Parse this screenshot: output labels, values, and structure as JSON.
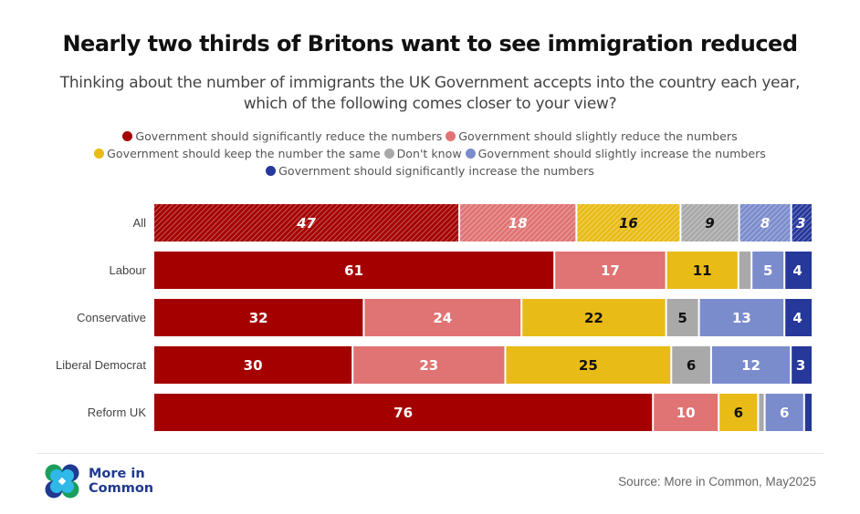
{
  "chart_data": {
    "type": "bar",
    "orientation": "horizontal",
    "stacked": true,
    "title": "Nearly two thirds of Britons want to see immigration reduced",
    "subtitle": "Thinking about the number of immigrants the UK Government accepts into the country each year, which of the following comes closer to your view?",
    "xlabel": "",
    "ylabel": "",
    "xlim": [
      0,
      100
    ],
    "grid": false,
    "legend_position": "top",
    "categories": [
      "All",
      "Labour",
      "Conservative",
      "Liberal Democrat",
      "Reform UK"
    ],
    "hatched_categories": [
      "All"
    ],
    "series": [
      {
        "name": "Government should significantly reduce the numbers",
        "color": "#a50000",
        "label_color": "#ffffff",
        "values": [
          47,
          61,
          32,
          30,
          76
        ],
        "labels": [
          "47",
          "61",
          "32",
          "30",
          "76"
        ]
      },
      {
        "name": "Government should slightly reduce the numbers",
        "color": "#e07373",
        "label_color": "#ffffff",
        "values": [
          18,
          17,
          24,
          23,
          10
        ],
        "labels": [
          "18",
          "17",
          "24",
          "23",
          "10"
        ]
      },
      {
        "name": "Government should keep the number the same",
        "color": "#e8bb16",
        "label_color": "#111111",
        "values": [
          16,
          11,
          22,
          25,
          6
        ],
        "labels": [
          "16",
          "11",
          "22",
          "25",
          "6"
        ]
      },
      {
        "name": "Don't know",
        "color": "#a9a9a9",
        "label_color": "#111111",
        "values": [
          9,
          2,
          5,
          6,
          1
        ],
        "labels": [
          "9",
          "",
          "5",
          "6",
          ""
        ]
      },
      {
        "name": "Government should slightly increase the numbers",
        "color": "#7b8ccc",
        "label_color": "#ffffff",
        "values": [
          8,
          5,
          13,
          12,
          6
        ],
        "labels": [
          "8",
          "5",
          "13",
          "12",
          "6"
        ]
      },
      {
        "name": "Government should significantly increase the numbers",
        "color": "#26389a",
        "label_color": "#ffffff",
        "values": [
          3,
          4,
          4,
          3,
          1
        ],
        "labels": [
          "3",
          "4",
          "4",
          "3",
          ""
        ]
      }
    ]
  },
  "legend_lines": [
    [
      0,
      1
    ],
    [
      2,
      3,
      4
    ],
    [
      5
    ]
  ],
  "footer": {
    "logo_text_line1": "More in",
    "logo_text_line2": "Common",
    "source": "Source: More in Common, May2025"
  }
}
